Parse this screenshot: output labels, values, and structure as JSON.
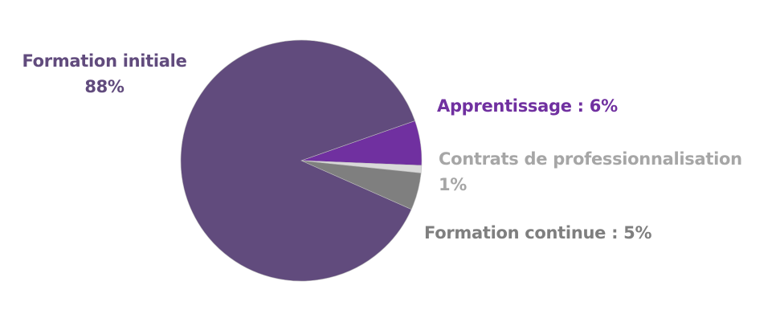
{
  "chart_data": {
    "type": "pie",
    "title": "",
    "start_angle_deg": -19.3,
    "direction": "clockwise",
    "center": [
      375,
      200
    ],
    "radius": 150,
    "slices": [
      {
        "name": "Apprentissage",
        "value": 6,
        "label_line1": "Apprentissage : 6%",
        "label_line2": "",
        "color": "#7030A0",
        "label_color": "#7030A0"
      },
      {
        "name": "Contrats de professionnalisation",
        "value": 1,
        "label_line1": "Contrats de professionnalisation",
        "label_line2": "1%",
        "color": "#D9D9D9",
        "label_color": "#A6A6A6"
      },
      {
        "name": "Formation continue",
        "value": 5,
        "label_line1": "Formation continue : 5%",
        "label_line2": "",
        "color": "#7F7F7F",
        "label_color": "#7F7F7F"
      },
      {
        "name": "Formation initiale",
        "value": 88,
        "label_line1": "Formation initiale",
        "label_line2": "88%",
        "color": "#614B7D",
        "label_color": "#614B7D"
      }
    ],
    "legend": "none",
    "slice_border_color": "#BFBFBF"
  },
  "labels": {
    "initiale": {
      "line1": "Formation initiale",
      "line2": "88%"
    },
    "apprentissage": {
      "line1": "Apprentissage : 6%"
    },
    "contrats": {
      "line1": "Contrats de professionnalisation",
      "line2": "1%"
    },
    "continue": {
      "line1": "Formation continue : 5%"
    }
  }
}
